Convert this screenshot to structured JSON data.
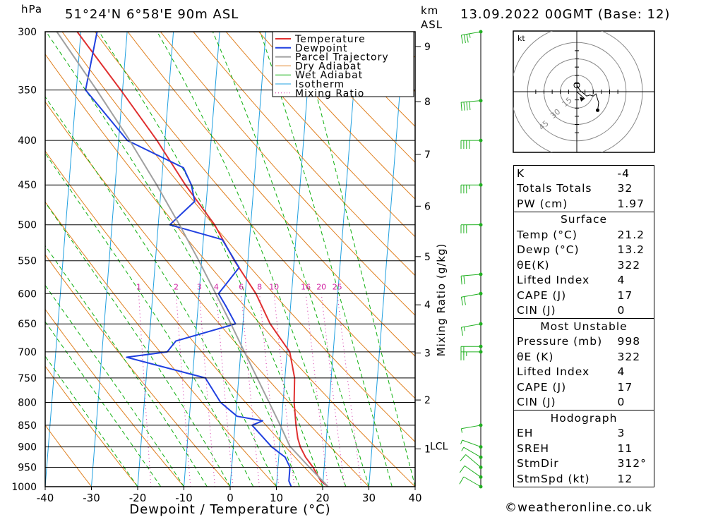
{
  "header": {
    "pressure_unit": "hPa",
    "location": "51°24'N  6°58'E  90m  ASL",
    "height_unit_line1": "km",
    "height_unit_line2": "ASL",
    "datetime": "13.09.2022  00GMT  (Base: 12)"
  },
  "colors": {
    "temperature": "#e03030",
    "dewpoint": "#2040e0",
    "parcel": "#a0a0a0",
    "dry_adiabat": "#e08020",
    "wet_adiabat": "#10b010",
    "isotherm": "#20a0e0",
    "mixing_ratio": "#d020a0",
    "wind_barb": "#20b020"
  },
  "chart_data": {
    "type": "line",
    "subtype": "skew-T log-P diagram",
    "xlabel": "Dewpoint / Temperature (°C)",
    "x_ticks": [
      -40,
      -30,
      -20,
      -10,
      0,
      10,
      20,
      30,
      40
    ],
    "xlim": [
      -40,
      40
    ],
    "ylabel": "hPa",
    "y_scale": "log",
    "y_ticks": [
      300,
      350,
      400,
      450,
      500,
      550,
      600,
      650,
      700,
      750,
      800,
      850,
      900,
      950,
      1000
    ],
    "ylim": [
      1000,
      300
    ],
    "legend": [
      "Temperature",
      "Dewpoint",
      "Parcel Trajectory",
      "Dry Adiabat",
      "Wet Adiabat",
      "Isotherm",
      "Mixing Ratio"
    ],
    "legend_position": "top-right",
    "secondary_axis": {
      "label": "km ASL",
      "ticks": [
        {
          "label": "1",
          "p": 905
        },
        {
          "label": "2",
          "p": 795
        },
        {
          "label": "3",
          "p": 702
        },
        {
          "label": "4",
          "p": 618
        },
        {
          "label": "5",
          "p": 544
        },
        {
          "label": "6",
          "p": 476
        },
        {
          "label": "7",
          "p": 415
        },
        {
          "label": "8",
          "p": 361
        },
        {
          "label": "9",
          "p": 312
        }
      ],
      "lcl_label": "LCL",
      "lcl_pressure": 898
    },
    "mixing_ratio_label": "Mixing Ratio (g/kg)",
    "mixing_ratio_values": [
      1,
      2,
      3,
      4,
      6,
      8,
      10,
      16,
      20,
      25
    ],
    "series": [
      {
        "name": "Temperature",
        "points": [
          [
            1000,
            21.2
          ],
          [
            985,
            19.5
          ],
          [
            950,
            17.6
          ],
          [
            925,
            15.8
          ],
          [
            900,
            14.5
          ],
          [
            880,
            13.8
          ],
          [
            850,
            13.2
          ],
          [
            800,
            12.4
          ],
          [
            750,
            12.1
          ],
          [
            700,
            10.6
          ],
          [
            650,
            5.9
          ],
          [
            600,
            2.3
          ],
          [
            550,
            -2.9
          ],
          [
            500,
            -7.8
          ],
          [
            450,
            -14.8
          ],
          [
            400,
            -21.7
          ],
          [
            350,
            -30.4
          ],
          [
            300,
            -40.8
          ]
        ]
      },
      {
        "name": "Dewpoint",
        "points": [
          [
            1000,
            13.2
          ],
          [
            985,
            12.6
          ],
          [
            950,
            12.6
          ],
          [
            925,
            11.4
          ],
          [
            900,
            8.3
          ],
          [
            850,
            3.7
          ],
          [
            840,
            5.9
          ],
          [
            830,
            0.3
          ],
          [
            800,
            -3.5
          ],
          [
            750,
            -7.2
          ],
          [
            710,
            -24.6
          ],
          [
            700,
            -15.9
          ],
          [
            680,
            -14.2
          ],
          [
            650,
            -1.6
          ],
          [
            620,
            -4.0
          ],
          [
            600,
            -5.8
          ],
          [
            590,
            -4.8
          ],
          [
            560,
            -1.8
          ],
          [
            520,
            -5.9
          ],
          [
            500,
            -17.5
          ],
          [
            470,
            -12.5
          ],
          [
            450,
            -13.5
          ],
          [
            430,
            -15.5
          ],
          [
            400,
            -28.1
          ],
          [
            350,
            -38.0
          ],
          [
            300,
            -36.5
          ]
        ]
      },
      {
        "name": "Parcel Trajectory",
        "points": [
          [
            1000,
            21.2
          ],
          [
            950,
            16.8
          ],
          [
            898,
            12.2
          ],
          [
            850,
            9.8
          ],
          [
            800,
            7.0
          ],
          [
            750,
            4.0
          ],
          [
            700,
            0.8
          ],
          [
            650,
            -2.6
          ],
          [
            600,
            -6.4
          ],
          [
            550,
            -10.6
          ],
          [
            500,
            -15.4
          ],
          [
            450,
            -21.0
          ],
          [
            400,
            -27.6
          ],
          [
            350,
            -35.6
          ],
          [
            300,
            -45.2
          ]
        ]
      }
    ],
    "wind_profile": [
      {
        "p": 1000,
        "dir": 300,
        "kt": 12
      },
      {
        "p": 975,
        "dir": 305,
        "kt": 10
      },
      {
        "p": 950,
        "dir": 310,
        "kt": 8
      },
      {
        "p": 925,
        "dir": 300,
        "kt": 6
      },
      {
        "p": 900,
        "dir": 290,
        "kt": 5
      },
      {
        "p": 850,
        "dir": 260,
        "kt": 5
      },
      {
        "p": 700,
        "dir": 270,
        "kt": 25
      },
      {
        "p": 690,
        "dir": 270,
        "kt": 22
      },
      {
        "p": 650,
        "dir": 260,
        "kt": 15
      },
      {
        "p": 600,
        "dir": 260,
        "kt": 20
      },
      {
        "p": 570,
        "dir": 265,
        "kt": 22
      },
      {
        "p": 500,
        "dir": 270,
        "kt": 30
      },
      {
        "p": 450,
        "dir": 270,
        "kt": 35
      },
      {
        "p": 400,
        "dir": 270,
        "kt": 40
      },
      {
        "p": 360,
        "dir": 265,
        "kt": 40
      },
      {
        "p": 300,
        "dir": 260,
        "kt": 35
      }
    ],
    "hodograph": {
      "unit_label": "kt",
      "ring_labels": [
        "15",
        "30",
        "45"
      ],
      "points_kt": [
        [
          0,
          12
        ],
        [
          6,
          2
        ],
        [
          12,
          -3
        ],
        [
          18,
          -8
        ],
        [
          24,
          -6
        ],
        [
          30,
          -8
        ],
        [
          35,
          -4
        ],
        [
          40,
          -20
        ],
        [
          38,
          -34
        ]
      ],
      "storm_motion": {
        "dir": 312,
        "kt": 12
      }
    }
  },
  "indices": {
    "general": [
      {
        "label": "K",
        "value": "-4"
      },
      {
        "label": "Totals Totals",
        "value": "32"
      },
      {
        "label": "PW (cm)",
        "value": "1.97"
      }
    ],
    "surface_title": "Surface",
    "surface": [
      {
        "label": "Temp (°C)",
        "value": "21.2"
      },
      {
        "label": "Dewp (°C)",
        "value": "13.2"
      },
      {
        "label": "θE(K)",
        "value": "322"
      },
      {
        "label": "Lifted Index",
        "value": "4"
      },
      {
        "label": "CAPE (J)",
        "value": "17"
      },
      {
        "label": "CIN (J)",
        "value": "0"
      }
    ],
    "most_unstable_title": "Most Unstable",
    "most_unstable": [
      {
        "label": "Pressure (mb)",
        "value": "998"
      },
      {
        "label": "θE (K)",
        "value": "322"
      },
      {
        "label": "Lifted Index",
        "value": "4"
      },
      {
        "label": "CAPE (J)",
        "value": "17"
      },
      {
        "label": "CIN (J)",
        "value": "0"
      }
    ],
    "hodograph_title": "Hodograph",
    "hodograph": [
      {
        "label": "EH",
        "value": "3"
      },
      {
        "label": "SREH",
        "value": "11"
      },
      {
        "label": "StmDir",
        "value": "312°"
      },
      {
        "label": "StmSpd (kt)",
        "value": "12"
      }
    ]
  },
  "credit": "©weatheronline.co.uk"
}
